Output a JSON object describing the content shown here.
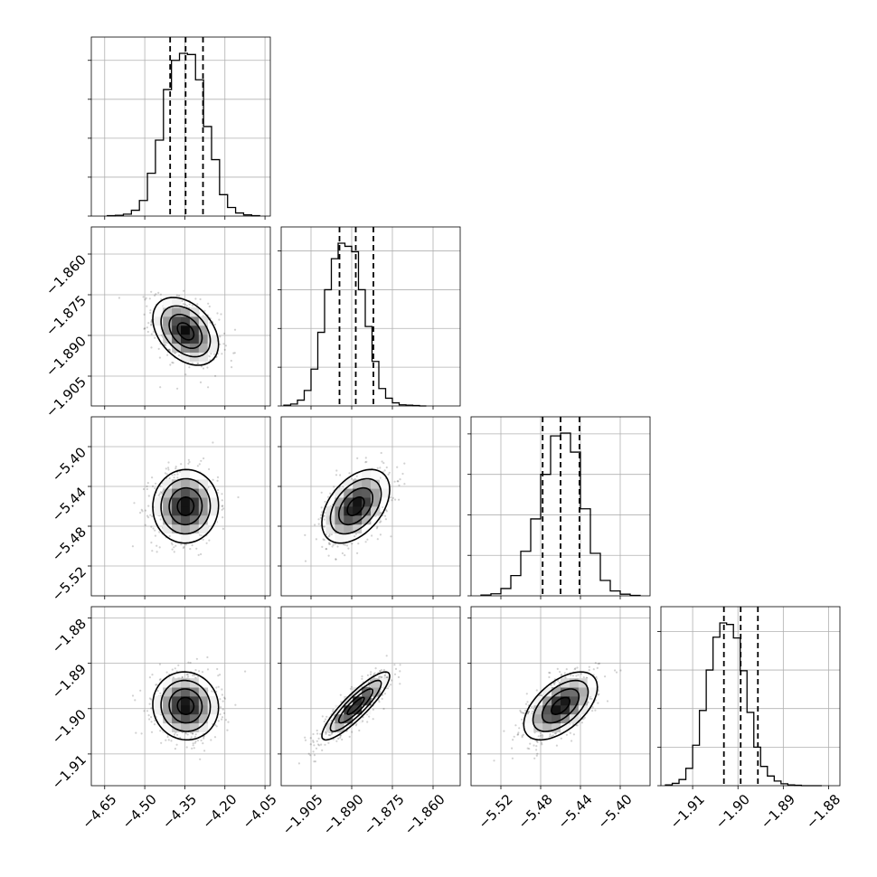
{
  "chart_data": {
    "type": "corner",
    "grid": true,
    "parameters": [
      {
        "range": [
          -4.7,
          -4.03
        ],
        "ticks": [
          -4.65,
          -4.5,
          -4.35,
          -4.2,
          -4.05
        ],
        "tick_labels": [
          "−4.65",
          "−4.50",
          "−4.35",
          "−4.20",
          "−4.05"
        ],
        "median": -4.347,
        "q16": -4.405,
        "q84": -4.282,
        "hist_bins": [
          -4.64,
          -4.61,
          -4.58,
          -4.55,
          -4.52,
          -4.49,
          -4.46,
          -4.43,
          -4.4,
          -4.37,
          -4.34,
          -4.31,
          -4.28,
          -4.25,
          -4.22,
          -4.19,
          -4.16,
          -4.13,
          -4.1,
          -4.07
        ],
        "hist_counts": [
          1,
          2,
          5,
          15,
          40,
          110,
          195,
          325,
          400,
          418,
          415,
          350,
          230,
          145,
          55,
          22,
          8,
          3,
          1
        ]
      },
      {
        "range": [
          -1.916,
          -1.85
        ],
        "ticks": [
          -1.905,
          -1.89,
          -1.875,
          -1.86
        ],
        "tick_labels": [
          "−1.905",
          "−1.890",
          "−1.875",
          "−1.860"
        ],
        "median": -1.8885,
        "q16": -1.8945,
        "q84": -1.882,
        "hist_bins": [
          -1.915,
          -1.9125,
          -1.91,
          -1.9075,
          -1.905,
          -1.9025,
          -1.9,
          -1.8975,
          -1.895,
          -1.8925,
          -1.89,
          -1.8875,
          -1.885,
          -1.8825,
          -1.88,
          -1.8775,
          -1.875,
          -1.8725,
          -1.87,
          -1.8675,
          -1.865,
          -1.8625
        ],
        "hist_counts": [
          2,
          5,
          15,
          40,
          95,
          190,
          300,
          380,
          420,
          412,
          398,
          300,
          205,
          115,
          45,
          20,
          8,
          3,
          2,
          1,
          0
        ]
      },
      {
        "range": [
          -5.55,
          -5.37
        ],
        "ticks": [
          -5.52,
          -5.48,
          -5.44,
          -5.4
        ],
        "tick_labels": [
          "−5.52",
          "−5.48",
          "−5.44",
          "−5.40"
        ],
        "median": -5.46,
        "q16": -5.478,
        "q84": -5.441,
        "hist_bins": [
          -5.54,
          -5.53,
          -5.52,
          -5.51,
          -5.5,
          -5.49,
          -5.48,
          -5.47,
          -5.46,
          -5.45,
          -5.44,
          -5.43,
          -5.42,
          -5.41,
          -5.4,
          -5.39,
          -5.38
        ],
        "hist_counts": [
          2,
          5,
          18,
          50,
          110,
          190,
          300,
          395,
          402,
          355,
          215,
          105,
          38,
          12,
          4,
          1
        ]
      },
      {
        "range": [
          -1.917,
          -1.8775
        ],
        "ticks": [
          -1.91,
          -1.9,
          -1.89,
          -1.88
        ],
        "tick_labels": [
          "−1.91",
          "−1.90",
          "−1.89",
          "−1.88"
        ],
        "median": -1.8994,
        "q16": -1.9031,
        "q84": -1.8956,
        "hist_bins": [
          -1.916,
          -1.9145,
          -1.913,
          -1.9115,
          -1.91,
          -1.9085,
          -1.907,
          -1.9055,
          -1.904,
          -1.9025,
          -1.901,
          -1.8995,
          -1.898,
          -1.8965,
          -1.895,
          -1.8935,
          -1.892,
          -1.8905,
          -1.889,
          -1.8875,
          -1.886,
          -1.8845,
          -1.883,
          -1.8815
        ],
        "hist_counts": [
          2,
          6,
          16,
          45,
          105,
          195,
          300,
          385,
          422,
          418,
          383,
          298,
          190,
          100,
          50,
          25,
          12,
          5,
          2,
          1,
          0,
          0,
          0
        ]
      }
    ],
    "pairs": [
      {
        "row": 1,
        "col": 0,
        "rho": -0.38
      },
      {
        "row": 2,
        "col": 0,
        "rho": 0.02
      },
      {
        "row": 2,
        "col": 1,
        "rho": 0.45
      },
      {
        "row": 3,
        "col": 0,
        "rho": -0.04
      },
      {
        "row": 3,
        "col": 1,
        "rho": 0.88
      },
      {
        "row": 3,
        "col": 2,
        "rho": 0.55
      }
    ]
  }
}
